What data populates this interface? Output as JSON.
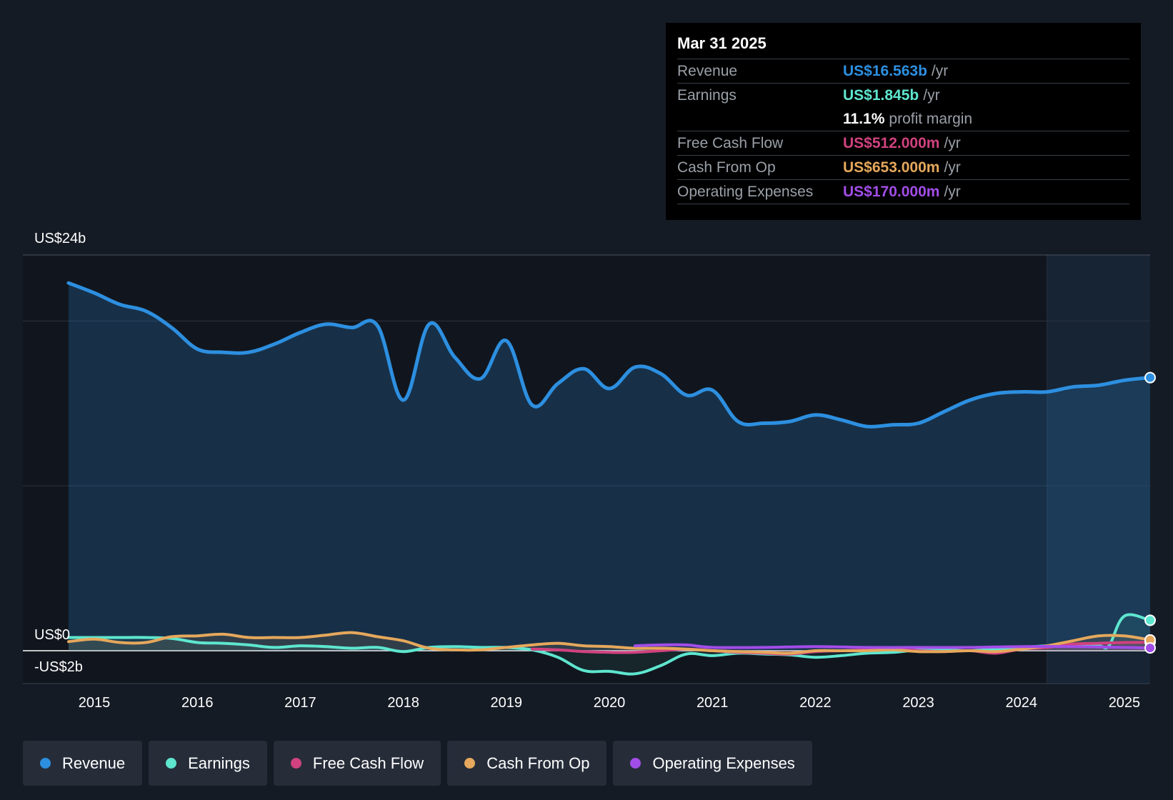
{
  "chart_data": {
    "type": "area",
    "y_labels": {
      "top": "US$24b",
      "zero": "US$0",
      "bottom": "-US$2b"
    },
    "ylim": [
      -2,
      24
    ],
    "xlim": [
      2014.75,
      2025.25
    ],
    "x_ticks": [
      "2015",
      "2016",
      "2017",
      "2018",
      "2019",
      "2020",
      "2021",
      "2022",
      "2023",
      "2024",
      "2025"
    ],
    "forecast_start": 2024.25,
    "series": [
      {
        "name": "Revenue",
        "color": "#2d8fe0",
        "points": [
          [
            2014.75,
            22.3
          ],
          [
            2015.0,
            21.7
          ],
          [
            2015.25,
            21.0
          ],
          [
            2015.5,
            20.6
          ],
          [
            2015.75,
            19.6
          ],
          [
            2016.0,
            18.3
          ],
          [
            2016.25,
            18.1
          ],
          [
            2016.5,
            18.1
          ],
          [
            2016.75,
            18.6
          ],
          [
            2017.0,
            19.3
          ],
          [
            2017.25,
            19.8
          ],
          [
            2017.5,
            19.6
          ],
          [
            2017.75,
            19.7
          ],
          [
            2018.0,
            15.2
          ],
          [
            2018.25,
            19.8
          ],
          [
            2018.5,
            17.8
          ],
          [
            2018.75,
            16.5
          ],
          [
            2019.0,
            18.8
          ],
          [
            2019.25,
            14.9
          ],
          [
            2019.5,
            16.2
          ],
          [
            2019.75,
            17.1
          ],
          [
            2020.0,
            15.9
          ],
          [
            2020.25,
            17.2
          ],
          [
            2020.5,
            16.8
          ],
          [
            2020.75,
            15.5
          ],
          [
            2021.0,
            15.8
          ],
          [
            2021.25,
            13.9
          ],
          [
            2021.5,
            13.8
          ],
          [
            2021.75,
            13.9
          ],
          [
            2022.0,
            14.3
          ],
          [
            2022.25,
            14.0
          ],
          [
            2022.5,
            13.6
          ],
          [
            2022.75,
            13.7
          ],
          [
            2023.0,
            13.8
          ],
          [
            2023.25,
            14.5
          ],
          [
            2023.5,
            15.2
          ],
          [
            2023.75,
            15.6
          ],
          [
            2024.0,
            15.7
          ],
          [
            2024.25,
            15.7
          ],
          [
            2024.5,
            16.0
          ],
          [
            2024.75,
            16.1
          ],
          [
            2025.0,
            16.4
          ],
          [
            2025.25,
            16.563
          ]
        ]
      },
      {
        "name": "Earnings",
        "color": "#5ee6cf",
        "points": [
          [
            2014.75,
            0.8
          ],
          [
            2015.0,
            0.8
          ],
          [
            2015.25,
            0.8
          ],
          [
            2015.5,
            0.8
          ],
          [
            2015.75,
            0.75
          ],
          [
            2016.0,
            0.5
          ],
          [
            2016.25,
            0.45
          ],
          [
            2016.5,
            0.35
          ],
          [
            2016.75,
            0.2
          ],
          [
            2017.0,
            0.3
          ],
          [
            2017.25,
            0.25
          ],
          [
            2017.5,
            0.15
          ],
          [
            2017.75,
            0.2
          ],
          [
            2018.0,
            -0.05
          ],
          [
            2018.25,
            0.2
          ],
          [
            2018.5,
            0.25
          ],
          [
            2018.75,
            0.2
          ],
          [
            2019.0,
            0.2
          ],
          [
            2019.25,
            0.05
          ],
          [
            2019.5,
            -0.4
          ],
          [
            2019.75,
            -1.2
          ],
          [
            2020.0,
            -1.25
          ],
          [
            2020.25,
            -1.4
          ],
          [
            2020.5,
            -0.9
          ],
          [
            2020.75,
            -0.2
          ],
          [
            2021.0,
            -0.3
          ],
          [
            2021.25,
            -0.15
          ],
          [
            2021.5,
            -0.2
          ],
          [
            2021.75,
            -0.25
          ],
          [
            2022.0,
            -0.4
          ],
          [
            2022.25,
            -0.3
          ],
          [
            2022.5,
            -0.15
          ],
          [
            2022.75,
            -0.1
          ],
          [
            2023.0,
            0.05
          ],
          [
            2023.25,
            0.05
          ],
          [
            2023.5,
            0.0
          ],
          [
            2023.75,
            0.1
          ],
          [
            2024.0,
            0.2
          ],
          [
            2024.25,
            0.3
          ],
          [
            2024.5,
            0.35
          ],
          [
            2024.75,
            0.3
          ],
          [
            2024.85,
            0.3
          ],
          [
            2025.0,
            2.1
          ],
          [
            2025.25,
            1.845
          ]
        ]
      },
      {
        "name": "Free Cash Flow",
        "color": "#d1427f",
        "points": [
          [
            2019.25,
            0.1
          ],
          [
            2019.5,
            0.05
          ],
          [
            2019.75,
            -0.05
          ],
          [
            2020.0,
            -0.1
          ],
          [
            2020.25,
            -0.1
          ],
          [
            2020.5,
            0.0
          ],
          [
            2020.75,
            0.1
          ],
          [
            2021.0,
            0.0
          ],
          [
            2021.25,
            -0.1
          ],
          [
            2021.5,
            -0.15
          ],
          [
            2021.75,
            -0.2
          ],
          [
            2022.0,
            -0.05
          ],
          [
            2022.25,
            0.0
          ],
          [
            2022.5,
            0.05
          ],
          [
            2022.75,
            0.1
          ],
          [
            2023.0,
            0.0
          ],
          [
            2023.25,
            -0.05
          ],
          [
            2023.5,
            0.0
          ],
          [
            2023.75,
            -0.15
          ],
          [
            2024.0,
            0.1
          ],
          [
            2024.25,
            0.2
          ],
          [
            2024.5,
            0.4
          ],
          [
            2024.75,
            0.45
          ],
          [
            2025.0,
            0.5
          ],
          [
            2025.25,
            0.512
          ]
        ]
      },
      {
        "name": "Cash From Op",
        "color": "#e6a85c",
        "points": [
          [
            2014.75,
            0.55
          ],
          [
            2015.0,
            0.7
          ],
          [
            2015.25,
            0.5
          ],
          [
            2015.5,
            0.5
          ],
          [
            2015.75,
            0.85
          ],
          [
            2016.0,
            0.9
          ],
          [
            2016.25,
            1.0
          ],
          [
            2016.5,
            0.8
          ],
          [
            2016.75,
            0.8
          ],
          [
            2017.0,
            0.8
          ],
          [
            2017.25,
            0.95
          ],
          [
            2017.5,
            1.1
          ],
          [
            2017.75,
            0.85
          ],
          [
            2018.0,
            0.6
          ],
          [
            2018.25,
            0.15
          ],
          [
            2018.5,
            0.05
          ],
          [
            2018.75,
            0.05
          ],
          [
            2019.0,
            0.2
          ],
          [
            2019.25,
            0.35
          ],
          [
            2019.5,
            0.45
          ],
          [
            2019.75,
            0.3
          ],
          [
            2020.0,
            0.25
          ],
          [
            2020.25,
            0.15
          ],
          [
            2020.5,
            0.15
          ],
          [
            2020.75,
            0.1
          ],
          [
            2021.0,
            0.0
          ],
          [
            2021.25,
            -0.05
          ],
          [
            2021.5,
            -0.1
          ],
          [
            2021.75,
            -0.15
          ],
          [
            2022.0,
            0.0
          ],
          [
            2022.25,
            0.0
          ],
          [
            2022.5,
            0.0
          ],
          [
            2022.75,
            0.05
          ],
          [
            2023.0,
            -0.05
          ],
          [
            2023.25,
            -0.05
          ],
          [
            2023.5,
            0.0
          ],
          [
            2023.75,
            -0.05
          ],
          [
            2024.0,
            0.1
          ],
          [
            2024.25,
            0.3
          ],
          [
            2024.5,
            0.6
          ],
          [
            2024.75,
            0.9
          ],
          [
            2025.0,
            0.9
          ],
          [
            2025.25,
            0.653
          ]
        ]
      },
      {
        "name": "Operating Expenses",
        "color": "#a24de8",
        "points": [
          [
            2020.25,
            0.3
          ],
          [
            2020.5,
            0.35
          ],
          [
            2020.75,
            0.35
          ],
          [
            2021.0,
            0.2
          ],
          [
            2021.5,
            0.2
          ],
          [
            2022.0,
            0.25
          ],
          [
            2022.5,
            0.2
          ],
          [
            2023.0,
            0.2
          ],
          [
            2023.5,
            0.2
          ],
          [
            2024.0,
            0.25
          ],
          [
            2024.5,
            0.25
          ],
          [
            2025.0,
            0.2
          ],
          [
            2025.25,
            0.17
          ]
        ]
      }
    ]
  },
  "tooltip": {
    "date": "Mar 31 2025",
    "revenue": {
      "label": "Revenue",
      "value": "US$16.563b",
      "unit": "/yr",
      "color": "#2d8fe0"
    },
    "earnings": {
      "label": "Earnings",
      "value": "US$1.845b",
      "unit": "/yr",
      "color": "#5ee6cf"
    },
    "margin": {
      "value": "11.1%",
      "label": "profit margin"
    },
    "fcf": {
      "label": "Free Cash Flow",
      "value": "US$512.000m",
      "unit": "/yr",
      "color": "#d1427f"
    },
    "cfo": {
      "label": "Cash From Op",
      "value": "US$653.000m",
      "unit": "/yr",
      "color": "#e6a85c"
    },
    "opex": {
      "label": "Operating Expenses",
      "value": "US$170.000m",
      "unit": "/yr",
      "color": "#a24de8"
    }
  },
  "legend": [
    {
      "label": "Revenue",
      "color": "#2d8fe0"
    },
    {
      "label": "Earnings",
      "color": "#5ee6cf"
    },
    {
      "label": "Free Cash Flow",
      "color": "#d1427f"
    },
    {
      "label": "Cash From Op",
      "color": "#e6a85c"
    },
    {
      "label": "Operating Expenses",
      "color": "#a24de8"
    }
  ]
}
